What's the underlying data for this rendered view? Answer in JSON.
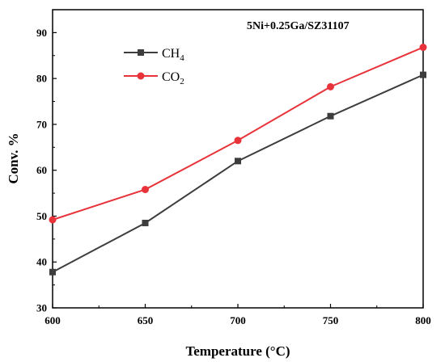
{
  "chart_data": {
    "type": "line",
    "annotation": "5Ni+0.25Ga/SZ31107",
    "xlabel": "Temperature (°C)",
    "ylabel": "Conv. %",
    "x": [
      600,
      650,
      700,
      750,
      800
    ],
    "xlim": [
      600,
      800
    ],
    "ylim": [
      30,
      95
    ],
    "xticks": [
      "600",
      "650",
      "700",
      "750",
      "800"
    ],
    "yticks": [
      "30",
      "40",
      "50",
      "60",
      "70",
      "80",
      "90"
    ],
    "grid": false,
    "legend_position": "top-left",
    "series": [
      {
        "name_main": "CH",
        "name_sub": "4",
        "marker": "square",
        "color": "#3d3d3d",
        "values": [
          37.8,
          48.5,
          62.0,
          71.8,
          80.8
        ]
      },
      {
        "name_main": "CO",
        "name_sub": "2",
        "marker": "circle",
        "color": "#e8333a",
        "values": [
          49.2,
          55.8,
          66.5,
          78.2,
          86.8
        ]
      }
    ]
  }
}
